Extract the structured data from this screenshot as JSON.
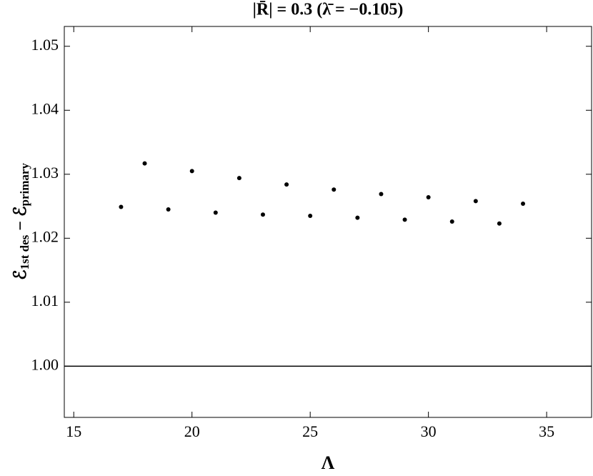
{
  "chart_data": {
    "type": "scatter",
    "title": "|R̄| = 0.3 (λ̄ = −0.105)",
    "xlabel": "Λ",
    "ylabel": [
      "ℰ",
      "1st des",
      " − ℰ",
      "primary"
    ],
    "x": [
      17,
      18,
      19,
      20,
      21,
      22,
      23,
      24,
      25,
      26,
      27,
      28,
      29,
      30,
      31,
      32,
      33,
      34
    ],
    "series": [
      {
        "color": "#000000",
        "values": [
          1.0249,
          1.0317,
          1.0245,
          1.0305,
          1.024,
          1.0294,
          1.0237,
          1.0284,
          1.0235,
          1.0276,
          1.0232,
          1.0269,
          1.0229,
          1.0264,
          1.0226,
          1.0258,
          1.0223,
          1.0254
        ]
      }
    ],
    "hline": 1,
    "xlim": [
      14.6,
      36.9
    ],
    "ylim": [
      0.992,
      1.0531
    ],
    "xticks": [
      15,
      20,
      25,
      30,
      35
    ],
    "yticks": [
      {
        "value": 1,
        "label": "1.00"
      },
      1.01,
      1.02,
      1.03,
      1.04,
      1.05
    ]
  }
}
